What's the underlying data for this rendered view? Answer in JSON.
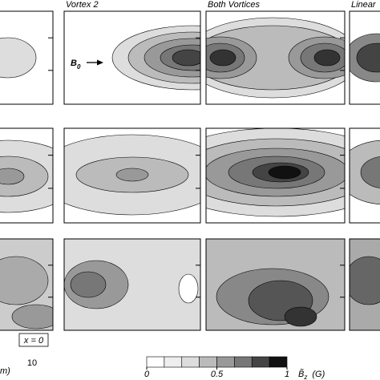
{
  "panels": [
    {
      "title": "Vortex 2"
    },
    {
      "title": "Both Vortices"
    },
    {
      "title": "Linear"
    }
  ],
  "annotations": {
    "b0_main": "B",
    "b0_sub": "0",
    "x_marker": "x = 0",
    "axis_tick": "10",
    "axis_label_fragment": "m)"
  },
  "colorbar": {
    "lim": [
      0,
      1
    ],
    "ticks": [
      0,
      0.5,
      1
    ],
    "label_main": "B̃",
    "label_sub": "z",
    "label_unit": "(G)"
  }
}
